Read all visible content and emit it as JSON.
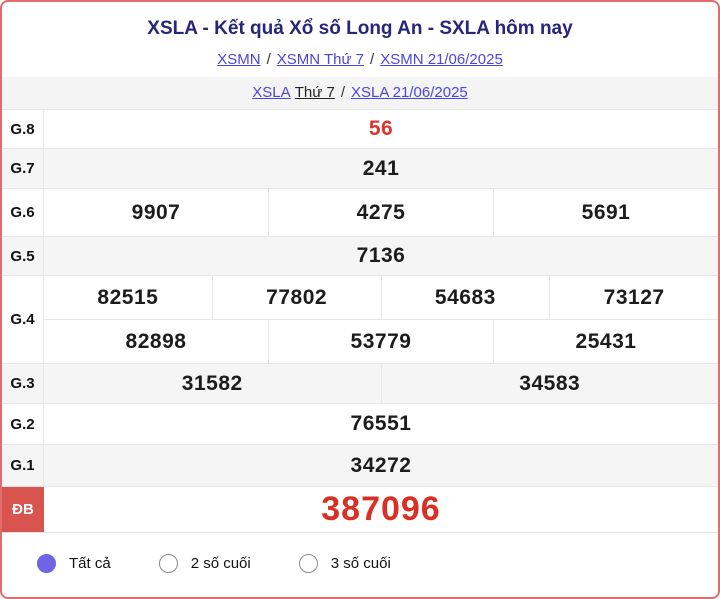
{
  "header": {
    "title": "XSLA - Kết quả Xổ số Long An - SXLA hôm nay",
    "breadcrumb1": {
      "sep": "/",
      "links": [
        "XSMN",
        "XSMN Thứ 7",
        "XSMN 21/06/2025"
      ]
    },
    "breadcrumb2": {
      "sep": "/",
      "link_xsla": "XSLA",
      "day_text": "Thứ 7",
      "link_date": "XSLA 21/06/2025"
    }
  },
  "results": {
    "g8": {
      "label": "G.8",
      "values": [
        "56"
      ]
    },
    "g7": {
      "label": "G.7",
      "values": [
        "241"
      ]
    },
    "g6": {
      "label": "G.6",
      "values": [
        "9907",
        "4275",
        "5691"
      ]
    },
    "g5": {
      "label": "G.5",
      "values": [
        "7136"
      ]
    },
    "g4": {
      "label": "G.4",
      "row1": [
        "82515",
        "77802",
        "54683",
        "73127"
      ],
      "row2": [
        "82898",
        "53779",
        "25431"
      ]
    },
    "g3": {
      "label": "G.3",
      "values": [
        "31582",
        "34583"
      ]
    },
    "g2": {
      "label": "G.2",
      "values": [
        "76551"
      ]
    },
    "g1": {
      "label": "G.1",
      "values": [
        "34272"
      ]
    },
    "db": {
      "label": "ĐB",
      "values": [
        "387096"
      ]
    }
  },
  "filters": {
    "options": [
      {
        "label": "Tất cả",
        "selected": true
      },
      {
        "label": "2 số cuối",
        "selected": false
      },
      {
        "label": "3 số cuối",
        "selected": false
      }
    ]
  },
  "colors": {
    "accent_red": "#da352c",
    "special_value_red": "#d93026",
    "special_label_bg": "#d9534f",
    "link_blue": "#4b46d9",
    "title_navy": "#26267a",
    "row_alt_bg": "#f5f5f5",
    "outer_border": "#e06c6c",
    "radio_selected": "#6f63e6"
  }
}
